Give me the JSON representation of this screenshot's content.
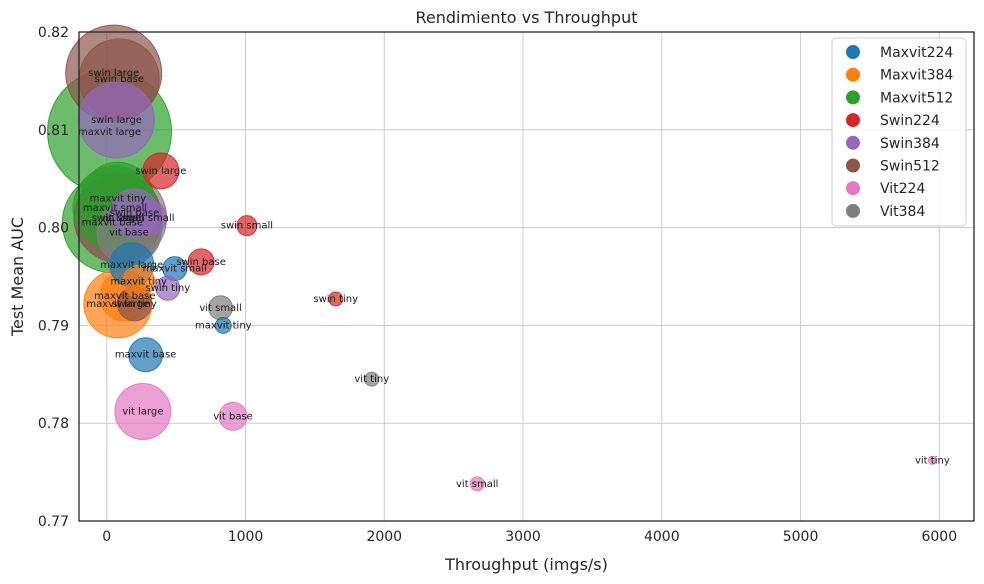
{
  "chart_data": {
    "type": "scatter",
    "title": "Rendimiento vs Throughput",
    "xlabel": "Throughput (imgs/s)",
    "ylabel": "Test Mean AUC",
    "xlim": [
      -200,
      6250
    ],
    "ylim": [
      0.77,
      0.82
    ],
    "xticks": [
      0,
      1000,
      2000,
      3000,
      4000,
      5000,
      6000
    ],
    "xtick_labels": [
      "0",
      "1000",
      "2000",
      "3000",
      "4000",
      "5000",
      "6000"
    ],
    "yticks": [
      0.77,
      0.78,
      0.79,
      0.8,
      0.81,
      0.82
    ],
    "ytick_labels": [
      "0.77",
      "0.78",
      "0.79",
      "0.80",
      "0.81",
      "0.82"
    ],
    "grid": true,
    "legend_position": "top-right",
    "series": [
      {
        "name": "Maxvit224",
        "color": "#1f77b4",
        "points": [
          {
            "x": 180,
            "y": 0.7962,
            "r": 22,
            "label": "maxvit large"
          },
          {
            "x": 280,
            "y": 0.787,
            "r": 17,
            "label": "maxvit base"
          },
          {
            "x": 490,
            "y": 0.7958,
            "r": 12,
            "label": "maxvit small"
          },
          {
            "x": 840,
            "y": 0.79,
            "r": 8,
            "label": "maxvit tiny"
          }
        ]
      },
      {
        "name": "Maxvit384",
        "color": "#ff7f0e",
        "points": [
          {
            "x": 80,
            "y": 0.7922,
            "r": 34,
            "label": "maxvit large"
          },
          {
            "x": 130,
            "y": 0.793,
            "r": 25,
            "label": "maxvit base"
          },
          {
            "x": 230,
            "y": 0.7945,
            "r": 16,
            "label": "maxvit tiny"
          }
        ]
      },
      {
        "name": "Maxvit512",
        "color": "#2ca02c",
        "points": [
          {
            "x": 20,
            "y": 0.8098,
            "r": 62,
            "label": "maxvit large"
          },
          {
            "x": 40,
            "y": 0.8005,
            "r": 50,
            "label": "maxvit base"
          },
          {
            "x": 60,
            "y": 0.802,
            "r": 42,
            "label": "maxvit small"
          },
          {
            "x": 80,
            "y": 0.803,
            "r": 36,
            "label": "maxvit tiny"
          }
        ]
      },
      {
        "name": "Swin224",
        "color": "#d62728",
        "points": [
          {
            "x": 390,
            "y": 0.8058,
            "r": 18,
            "label": "swin large"
          },
          {
            "x": 680,
            "y": 0.7965,
            "r": 13,
            "label": "swin base"
          },
          {
            "x": 1010,
            "y": 0.8002,
            "r": 10,
            "label": "swin small"
          },
          {
            "x": 1650,
            "y": 0.7927,
            "r": 7,
            "label": "swin tiny"
          }
        ]
      },
      {
        "name": "Swin384",
        "color": "#9467bd",
        "points": [
          {
            "x": 70,
            "y": 0.811,
            "r": 38,
            "label": "swin large"
          },
          {
            "x": 200,
            "y": 0.8015,
            "r": 24,
            "label": "swin base"
          },
          {
            "x": 300,
            "y": 0.801,
            "r": 18,
            "label": "swin small"
          },
          {
            "x": 440,
            "y": 0.7938,
            "r": 12,
            "label": "swin tiny"
          }
        ]
      },
      {
        "name": "Swin512",
        "color": "#8c564b",
        "points": [
          {
            "x": 50,
            "y": 0.8158,
            "r": 48,
            "label": "swin large"
          },
          {
            "x": 90,
            "y": 0.8152,
            "r": 40,
            "label": "swin base"
          },
          {
            "x": 80,
            "y": 0.801,
            "r": 44,
            "label": "swin small"
          },
          {
            "x": 200,
            "y": 0.7922,
            "r": 17,
            "label": "swin tiny"
          }
        ]
      },
      {
        "name": "Vit224",
        "color": "#e377c2",
        "points": [
          {
            "x": 260,
            "y": 0.7812,
            "r": 28,
            "label": "vit large"
          },
          {
            "x": 910,
            "y": 0.7807,
            "r": 14,
            "label": "vit base"
          },
          {
            "x": 2670,
            "y": 0.7738,
            "r": 7,
            "label": "vit small"
          },
          {
            "x": 5950,
            "y": 0.7762,
            "r": 4,
            "label": "vit tiny"
          }
        ]
      },
      {
        "name": "Vit384",
        "color": "#7f7f7f",
        "points": [
          {
            "x": 100,
            "y": 0.801,
            "r": 46,
            "label": "vit large"
          },
          {
            "x": 160,
            "y": 0.7995,
            "r": 32,
            "label": "vit base"
          },
          {
            "x": 820,
            "y": 0.7918,
            "r": 12,
            "label": "vit small"
          },
          {
            "x": 1910,
            "y": 0.7845,
            "r": 7,
            "label": "vit tiny"
          }
        ]
      }
    ]
  }
}
